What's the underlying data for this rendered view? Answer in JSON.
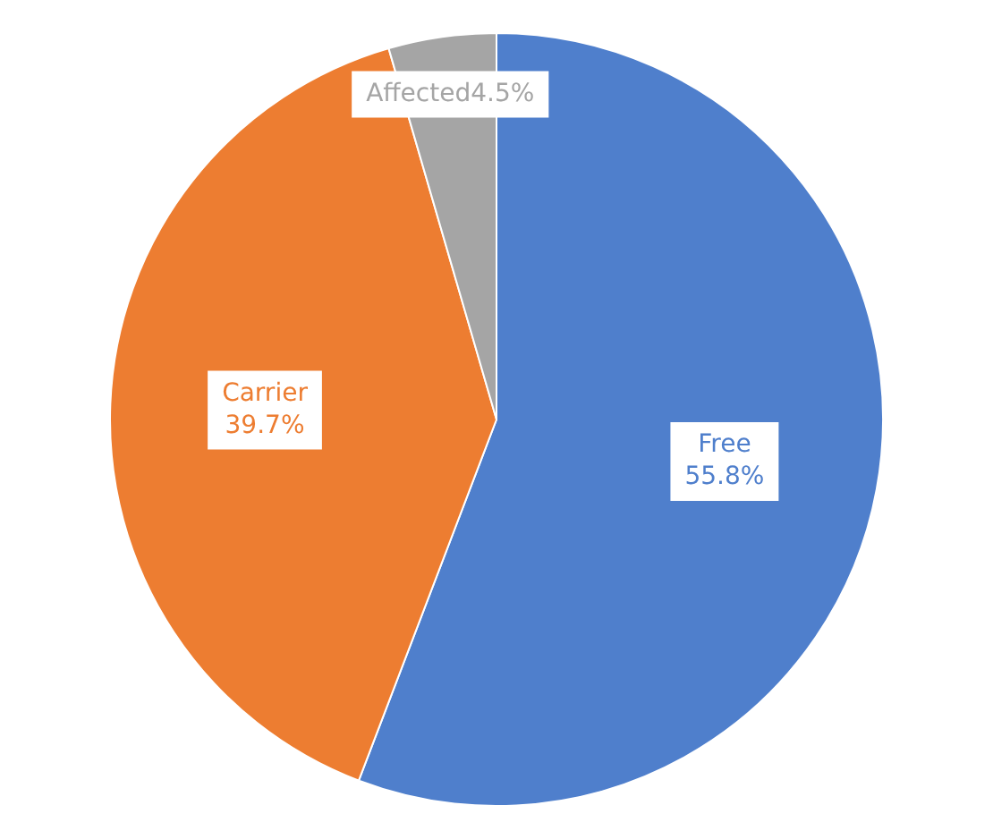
{
  "chart_data": {
    "type": "pie",
    "categories": [
      "Free",
      "Carrier",
      "Affected"
    ],
    "values": [
      55.8,
      39.7,
      4.5
    ],
    "colors": [
      "#4f7fcc",
      "#ed7d31",
      "#a5a5a5"
    ],
    "value_labels": [
      "55.8%",
      "39.7%",
      "4.5%"
    ],
    "legend": false
  }
}
